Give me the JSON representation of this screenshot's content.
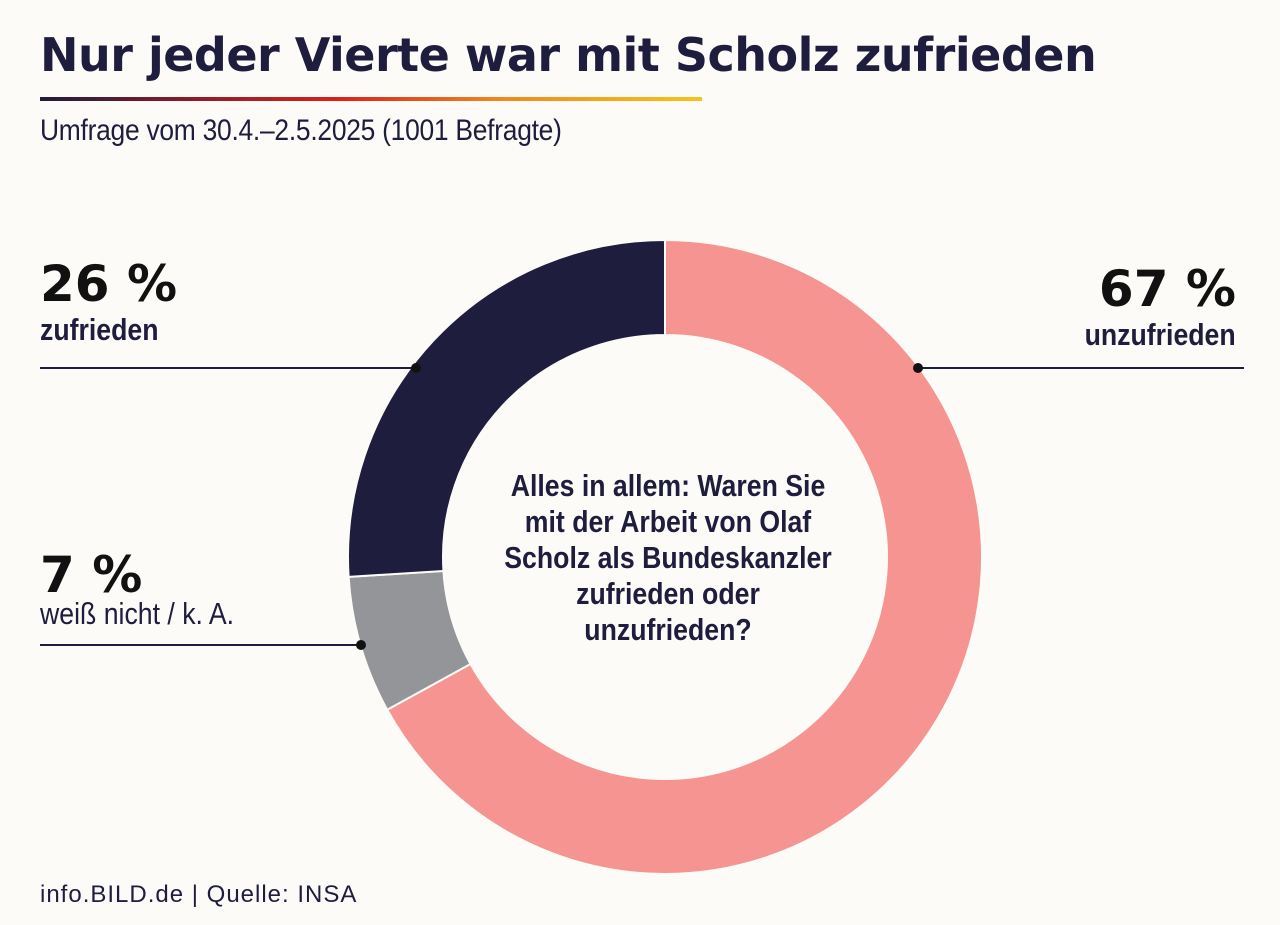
{
  "header": {
    "title": "Nur jeder Vierte war mit Scholz zufrieden",
    "subtitle": "Umfrage vom 30.4.–2.5.2025 (1001 Befragte)"
  },
  "chart_data": {
    "type": "pie",
    "title": "Nur jeder Vierte war mit Scholz zufrieden",
    "subtitle": "Umfrage vom 30.4.–2.5.2025 (1001 Befragte)",
    "question": "Alles in allem: Waren Sie mit der Arbeit von Olaf Scholz als Bundeskanzler zufrieden oder unzufrieden?",
    "unit": "%",
    "slices": [
      {
        "label": "unzufrieden",
        "value": 67,
        "value_label": "67 %",
        "color": "#f59490"
      },
      {
        "label": "weiß nicht / k. A.",
        "value": 7,
        "value_label": "7 %",
        "color": "#939598"
      },
      {
        "label": "zufrieden",
        "value": 26,
        "value_label": "26 %",
        "color": "#1e1d3d"
      }
    ]
  },
  "footer": {
    "source": "info.BILD.de | Quelle: INSA"
  },
  "colors": {
    "background": "#fdfbf7",
    "text": "#1e1d3d"
  }
}
